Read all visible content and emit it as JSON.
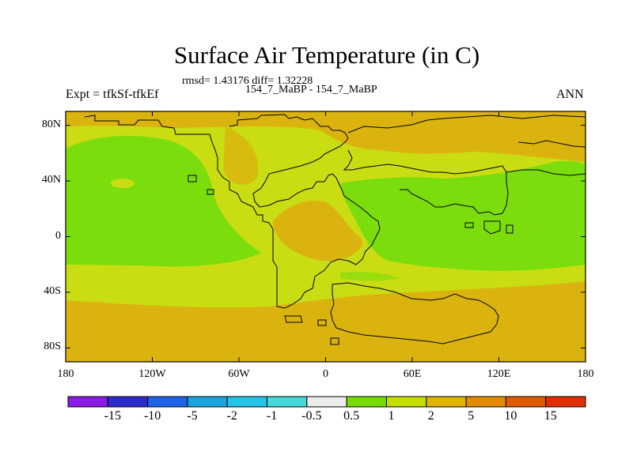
{
  "title": "Surface Air Temperature (in C)",
  "stats": "rmsd= 1.43176 diff= 1.32228",
  "subtitle": "154_7_MaBP - 154_7_MaBP",
  "expt_label": "Expt = tfkSf-tfkEf",
  "season": "ANN",
  "map": {
    "lon_range": [
      -180,
      180
    ],
    "lat_range": [
      -90,
      90
    ],
    "x_ticks": [
      {
        "lon": -180,
        "label": "180"
      },
      {
        "lon": -120,
        "label": "120W"
      },
      {
        "lon": -60,
        "label": "60W"
      },
      {
        "lon": 0,
        "label": "0"
      },
      {
        "lon": 60,
        "label": "60E"
      },
      {
        "lon": 120,
        "label": "120E"
      },
      {
        "lon": 180,
        "label": "180"
      }
    ],
    "y_ticks": [
      {
        "lat": 80,
        "label": "80N"
      },
      {
        "lat": 40,
        "label": "40N"
      },
      {
        "lat": 0,
        "label": "0"
      },
      {
        "lat": -40,
        "label": "40S"
      },
      {
        "lat": -80,
        "label": "80S"
      }
    ]
  },
  "colorbar": {
    "colors": [
      "#8a1ce6",
      "#2c2ccc",
      "#1f62e6",
      "#1aa3e0",
      "#25c3e8",
      "#46d8d8",
      "#ececec",
      "#78dc00",
      "#c4e000",
      "#e0b400",
      "#e48a00",
      "#e05a00",
      "#e03000"
    ],
    "labels": [
      "-15",
      "-10",
      "-5",
      "-2",
      "-1",
      "-0.5",
      "0.5",
      "1",
      "2",
      "5",
      "10",
      "15"
    ]
  },
  "colors": {
    "green": "#7cdd0c",
    "yellow_green": "#c9dd12",
    "orange": "#dbb30e"
  }
}
